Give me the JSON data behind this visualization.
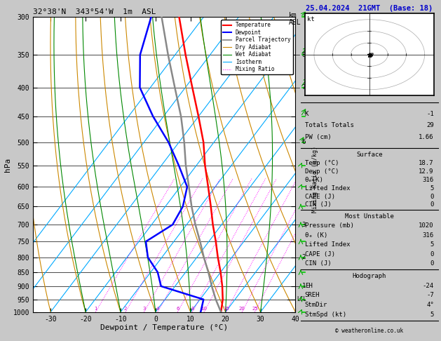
{
  "title_left": "32°38'N  343°54'W  1m  ASL",
  "title_right": "25.04.2024  21GMT  (Base: 18)",
  "ylabel_left": "hPa",
  "xlabel": "Dewpoint / Temperature (°C)",
  "pressure_ticks": [
    300,
    350,
    400,
    450,
    500,
    550,
    600,
    650,
    700,
    750,
    800,
    850,
    900,
    950,
    1000
  ],
  "pmin": 300,
  "pmax": 1000,
  "tmin": -35,
  "tmax": 40,
  "skew_factor": 0.85,
  "legend_items": [
    {
      "label": "Temperature",
      "color": "#ff0000",
      "lw": 1.5,
      "ls": "solid"
    },
    {
      "label": "Dewpoint",
      "color": "#0000ff",
      "lw": 1.5,
      "ls": "solid"
    },
    {
      "label": "Parcel Trajectory",
      "color": "#999999",
      "lw": 1.5,
      "ls": "solid"
    },
    {
      "label": "Dry Adiabat",
      "color": "#cc8800",
      "lw": 0.8,
      "ls": "solid"
    },
    {
      "label": "Wet Adiabat",
      "color": "#008800",
      "lw": 0.8,
      "ls": "solid"
    },
    {
      "label": "Isotherm",
      "color": "#00aaff",
      "lw": 0.8,
      "ls": "solid"
    },
    {
      "label": "Mixing Ratio",
      "color": "#ff00ff",
      "lw": 0.8,
      "ls": "dotted"
    }
  ],
  "temp_profile": {
    "pressure": [
      1000,
      950,
      900,
      850,
      800,
      750,
      700,
      650,
      600,
      550,
      500,
      450,
      400,
      350,
      300
    ],
    "temp": [
      18.7,
      16.5,
      13.5,
      10.0,
      6.0,
      2.0,
      -2.5,
      -7.0,
      -12.0,
      -17.5,
      -23.0,
      -30.0,
      -38.0,
      -47.0,
      -57.0
    ]
  },
  "dewp_profile": {
    "pressure": [
      1000,
      950,
      900,
      850,
      800,
      750,
      700,
      650,
      600,
      550,
      500,
      450,
      400,
      350,
      300
    ],
    "temp": [
      12.9,
      11.0,
      -4.0,
      -8.0,
      -14.0,
      -18.0,
      -14.0,
      -15.0,
      -18.0,
      -25.0,
      -33.0,
      -43.0,
      -53.0,
      -60.0,
      -65.0
    ]
  },
  "parcel_profile": {
    "pressure": [
      1000,
      950,
      900,
      850,
      800,
      750,
      700,
      650,
      600,
      550,
      500,
      450,
      400,
      350,
      300
    ],
    "temp": [
      18.7,
      14.5,
      10.5,
      6.5,
      2.0,
      -2.5,
      -7.5,
      -12.5,
      -17.5,
      -23.0,
      -28.5,
      -35.0,
      -43.0,
      -52.0,
      -62.0
    ]
  },
  "lcl_pressure": 950,
  "mixing_ratios": [
    1,
    2,
    3,
    4,
    6,
    8,
    10,
    15,
    20,
    25
  ],
  "dry_adiabat_thetas": [
    -30,
    -20,
    -10,
    0,
    10,
    20,
    30,
    40,
    50,
    60,
    70,
    80,
    90,
    100,
    110,
    120
  ],
  "wet_adiabat_T0s": [
    -20,
    -10,
    0,
    10,
    20,
    30,
    40
  ],
  "isotherm_temps": [
    -50,
    -40,
    -30,
    -20,
    -10,
    0,
    10,
    20,
    30,
    40,
    50
  ],
  "km_ticks": {
    "pressures": [
      350,
      400,
      500,
      600,
      700,
      800,
      900,
      950
    ],
    "labels": [
      "8",
      "7",
      "6",
      "",
      "3",
      "2",
      "1",
      ""
    ]
  },
  "stats": {
    "K": -1,
    "Totals_Totals": 29,
    "PW_cm": 1.66,
    "Surf_Temp": 18.7,
    "Surf_Dewp": 12.9,
    "Surf_ThetaE": 316,
    "Surf_LI": 5,
    "Surf_CAPE": 0,
    "Surf_CIN": 0,
    "MU_Pressure": 1020,
    "MU_ThetaE": 316,
    "MU_LI": 5,
    "MU_CAPE": 0,
    "MU_CIN": 0,
    "EH": -24,
    "SREH": -7,
    "StmDir": 4,
    "StmSpd": 5
  },
  "wind_barb_pressures": [
    300,
    350,
    400,
    450,
    500,
    550,
    600,
    650,
    700,
    750,
    800,
    850,
    900,
    950,
    1000
  ],
  "wind_u": [
    3,
    4,
    5,
    4,
    3,
    2,
    2,
    1,
    1,
    1,
    1,
    1,
    1,
    2,
    2
  ],
  "wind_v": [
    3,
    4,
    4,
    3,
    2,
    1,
    1,
    0,
    0,
    0,
    0,
    0,
    0,
    1,
    1
  ]
}
